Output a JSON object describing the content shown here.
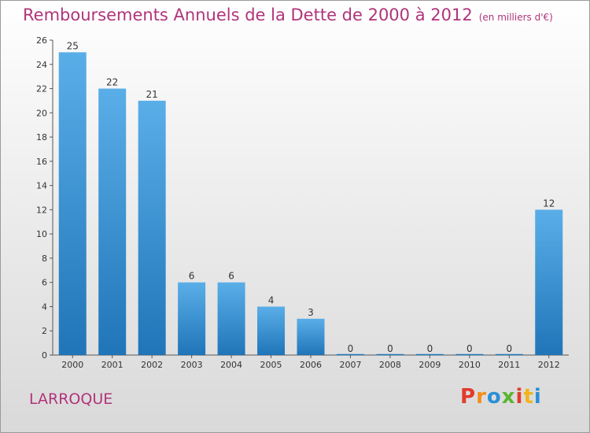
{
  "header": {
    "title": "Remboursements Annuels de la Dette de 2000 à 2012",
    "unit": "(en milliers d'€)"
  },
  "footer": {
    "commune": "LARROQUE",
    "logo_text": "Proxiti"
  },
  "colors": {
    "bar_top": "#5aaee8",
    "bar_bottom": "#1f75b8",
    "title": "#b0347a",
    "logo_letters": [
      "#e23b2a",
      "#f28c1c",
      "#2a8fd6",
      "#5bb531",
      "#e23b2a",
      "#f2b41c",
      "#2a8fd6"
    ]
  },
  "chart_data": {
    "type": "bar",
    "title": "Remboursements Annuels de la Dette de 2000 à 2012",
    "categories": [
      "2000",
      "2001",
      "2002",
      "2003",
      "2004",
      "2005",
      "2006",
      "2007",
      "2008",
      "2009",
      "2010",
      "2011",
      "2012"
    ],
    "values": [
      25,
      22,
      21,
      6,
      6,
      4,
      3,
      0,
      0,
      0,
      0,
      0,
      12
    ],
    "data_labels": [
      "25",
      "22",
      "21",
      "6",
      "6",
      "4",
      "3",
      "0",
      "0",
      "0",
      "0",
      "0",
      "12"
    ],
    "ylim": [
      0,
      26
    ],
    "yticks": [
      0,
      2,
      4,
      6,
      8,
      10,
      12,
      14,
      16,
      18,
      20,
      22,
      24,
      26
    ],
    "xlabel": "",
    "ylabel": "",
    "grid": false
  }
}
